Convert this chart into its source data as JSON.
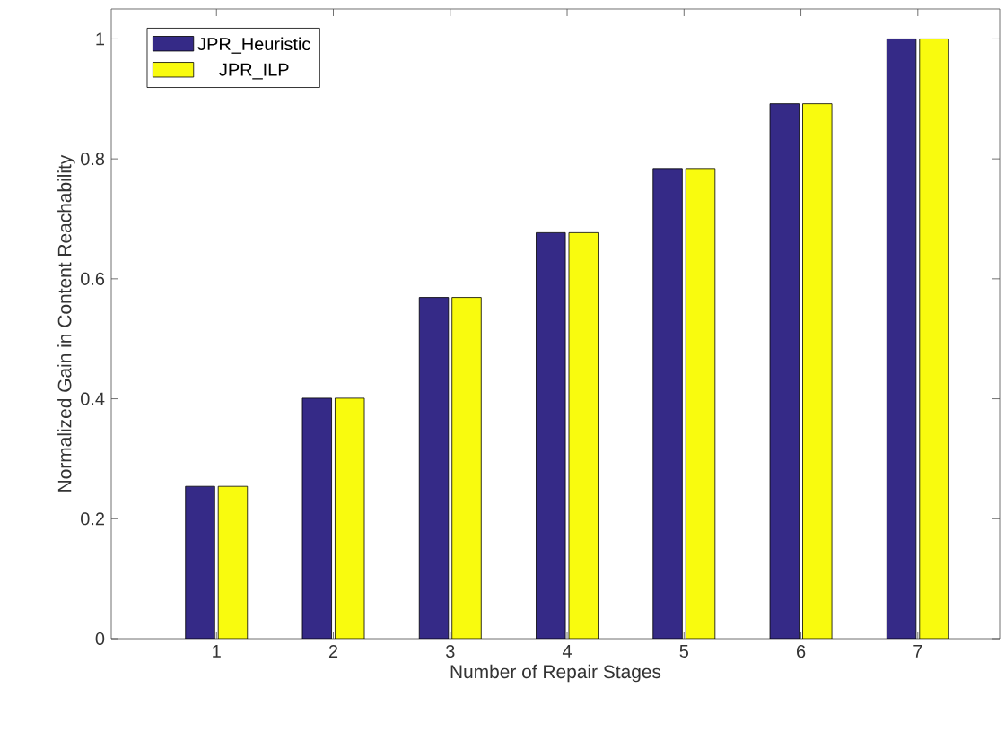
{
  "chart_data": {
    "type": "bar",
    "xlabel": "Number of Repair Stages",
    "ylabel": "Normalized Gain in Content Reachability",
    "categories": [
      "1",
      "2",
      "3",
      "4",
      "5",
      "6",
      "7"
    ],
    "series": [
      {
        "name": "JPR_Heuristic",
        "color": "#352a87",
        "values": [
          0.254,
          0.401,
          0.569,
          0.677,
          0.784,
          0.892,
          1.0
        ]
      },
      {
        "name": "JPR_ILP",
        "color": "#f9fb0e",
        "values": [
          0.254,
          0.401,
          0.569,
          0.677,
          0.784,
          0.892,
          1.0
        ]
      }
    ],
    "ylim": [
      0,
      1.05
    ],
    "yticks": [
      0,
      0.2,
      0.4,
      0.6,
      0.8,
      1
    ],
    "legend": "top left"
  }
}
